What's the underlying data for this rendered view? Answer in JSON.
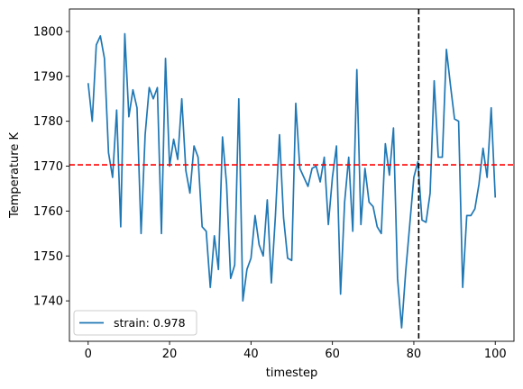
{
  "chart_data": {
    "type": "line",
    "title": "",
    "xlabel": "timestep",
    "ylabel": "Temperature K",
    "xlim": [
      -4.6,
      104.6
    ],
    "ylim": [
      1731,
      1805
    ],
    "xticks": [
      0,
      20,
      40,
      60,
      80,
      100
    ],
    "yticks": [
      1740,
      1750,
      1760,
      1770,
      1780,
      1790,
      1800
    ],
    "grid": false,
    "legend_position": "lower-left",
    "series": [
      {
        "name": "strain: 0.978",
        "color": "#1f77b4",
        "x": [
          0,
          1,
          2,
          3,
          4,
          5,
          6,
          7,
          8,
          9,
          10,
          11,
          12,
          13,
          14,
          15,
          16,
          17,
          18,
          19,
          20,
          21,
          22,
          23,
          24,
          25,
          26,
          27,
          28,
          29,
          30,
          31,
          32,
          33,
          34,
          35,
          36,
          37,
          38,
          39,
          40,
          41,
          42,
          43,
          44,
          45,
          46,
          47,
          48,
          49,
          50,
          51,
          52,
          53,
          54,
          55,
          56,
          57,
          58,
          59,
          60,
          61,
          62,
          63,
          64,
          65,
          66,
          67,
          68,
          69,
          70,
          71,
          72,
          73,
          74,
          75,
          76,
          77,
          78,
          79,
          80,
          81,
          82,
          83,
          84,
          85,
          86,
          87,
          88,
          89,
          90,
          91,
          92,
          93,
          94,
          95,
          96,
          97,
          98,
          99,
          100
        ],
        "y": [
          1788.5,
          1780,
          1797,
          1799,
          1794,
          1773,
          1767.5,
          1782.5,
          1756.5,
          1799.5,
          1781,
          1787,
          1783,
          1755,
          1777,
          1787.5,
          1785,
          1787.5,
          1755,
          1794,
          1770,
          1776,
          1771.5,
          1785,
          1769,
          1764,
          1774.5,
          1772,
          1756.5,
          1755.5,
          1743,
          1754.5,
          1747,
          1776.5,
          1766,
          1745,
          1748,
          1785,
          1740,
          1747,
          1749.5,
          1759,
          1752.5,
          1750,
          1762.5,
          1744,
          1759,
          1777,
          1758.5,
          1749.5,
          1749,
          1784,
          1769.5,
          1767.5,
          1765.5,
          1769.5,
          1770,
          1766.5,
          1772,
          1757,
          1767.5,
          1774.5,
          1741.5,
          1762,
          1772,
          1755.5,
          1791.5,
          1757,
          1769.5,
          1762,
          1761,
          1756.5,
          1755,
          1775,
          1768,
          1778.5,
          1745,
          1734,
          1746.5,
          1757,
          1767.5,
          1771,
          1758,
          1757.5,
          1764,
          1789,
          1772,
          1772,
          1796,
          1788,
          1780.5,
          1780,
          1743,
          1759,
          1759,
          1760.5,
          1766,
          1774,
          1767.5,
          1783,
          1763
        ]
      }
    ],
    "hlines": [
      {
        "y": 1770.3,
        "color": "#ff0000",
        "style": "dashed"
      }
    ],
    "vlines": [
      {
        "x": 81.2,
        "color": "#000000",
        "style": "dashed"
      }
    ]
  }
}
